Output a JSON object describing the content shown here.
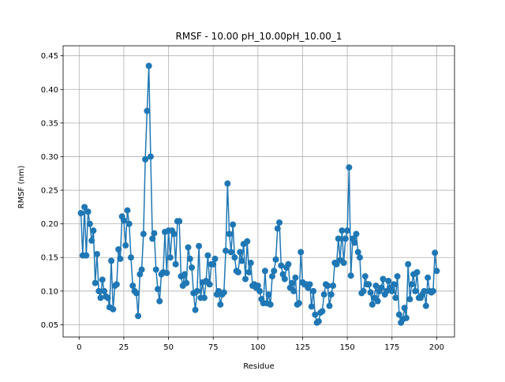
{
  "chart_data": {
    "type": "line",
    "title": "RMSF - 10.00 pH_10.00pH_10.00_1",
    "x_label": "Residue",
    "y_label": "RMSF (nm)",
    "grid": true,
    "xlim": [
      -8.95,
      209.95
    ],
    "xticks": [
      0,
      25,
      50,
      75,
      100,
      125,
      150,
      175,
      200
    ],
    "ylim": [
      0.0317,
      0.4649
    ],
    "yticks": [
      0.05,
      0.1,
      0.15,
      0.2,
      0.25,
      0.3,
      0.35,
      0.4,
      0.45
    ],
    "ytick_labels": [
      "0.05",
      "0.10",
      "0.15",
      "0.20",
      "0.25",
      "0.30",
      "0.35",
      "0.40",
      "0.45"
    ],
    "series": [
      {
        "color": "#1f77b4",
        "x": [
          1,
          2,
          3,
          4,
          5,
          6,
          7,
          8,
          9,
          10,
          11,
          12,
          13,
          14,
          15,
          16,
          17,
          18,
          19,
          20,
          21,
          22,
          23,
          24,
          25,
          26,
          27,
          28,
          29,
          30,
          31,
          32,
          33,
          34,
          35,
          36,
          37,
          38,
          39,
          40,
          41,
          42,
          43,
          44,
          45,
          46,
          47,
          48,
          49,
          50,
          51,
          52,
          53,
          54,
          55,
          56,
          57,
          58,
          59,
          60,
          61,
          62,
          63,
          64,
          65,
          66,
          67,
          68,
          69,
          70,
          71,
          72,
          73,
          74,
          75,
          76,
          77,
          78,
          79,
          80,
          81,
          82,
          83,
          84,
          85,
          86,
          87,
          88,
          89,
          90,
          91,
          92,
          93,
          94,
          95,
          96,
          97,
          98,
          99,
          100,
          101,
          102,
          103,
          104,
          105,
          106,
          107,
          108,
          109,
          110,
          111,
          112,
          113,
          114,
          115,
          116,
          117,
          118,
          119,
          120,
          121,
          122,
          123,
          124,
          125,
          126,
          127,
          128,
          129,
          130,
          131,
          132,
          133,
          134,
          135,
          136,
          137,
          138,
          139,
          140,
          141,
          142,
          143,
          144,
          145,
          146,
          147,
          148,
          149,
          150,
          151,
          152,
          153,
          154,
          155,
          156,
          157,
          158,
          159,
          160,
          161,
          162,
          163,
          164,
          165,
          166,
          167,
          168,
          169,
          170,
          171,
          172,
          173,
          174,
          175,
          176,
          177,
          178,
          179,
          180,
          181,
          182,
          183,
          184,
          185,
          186,
          187,
          188,
          189,
          190,
          191,
          192,
          193,
          194,
          195,
          196,
          197,
          198,
          199,
          200
        ],
        "values": [
          0.216,
          0.153,
          0.225,
          0.153,
          0.218,
          0.2,
          0.175,
          0.19,
          0.112,
          0.155,
          0.1,
          0.09,
          0.117,
          0.1,
          0.092,
          0.09,
          0.076,
          0.145,
          0.073,
          0.108,
          0.11,
          0.162,
          0.148,
          0.211,
          0.205,
          0.168,
          0.22,
          0.2,
          0.15,
          0.108,
          0.1,
          0.097,
          0.063,
          0.125,
          0.132,
          0.185,
          0.296,
          0.368,
          0.435,
          0.3,
          0.178,
          0.186,
          0.132,
          0.103,
          0.085,
          0.125,
          0.128,
          0.188,
          0.127,
          0.19,
          0.15,
          0.19,
          0.185,
          0.14,
          0.204,
          0.204,
          0.122,
          0.108,
          0.125,
          0.112,
          0.165,
          0.148,
          0.135,
          0.097,
          0.072,
          0.1,
          0.167,
          0.09,
          0.113,
          0.09,
          0.115,
          0.153,
          0.11,
          0.14,
          0.14,
          0.148,
          0.095,
          0.1,
          0.08,
          0.095,
          0.098,
          0.16,
          0.26,
          0.185,
          0.158,
          0.199,
          0.15,
          0.13,
          0.128,
          0.158,
          0.145,
          0.17,
          0.118,
          0.174,
          0.128,
          0.142,
          0.108,
          0.11,
          0.105,
          0.108,
          0.1,
          0.088,
          0.082,
          0.13,
          0.082,
          0.095,
          0.08,
          0.122,
          0.13,
          0.147,
          0.193,
          0.202,
          0.138,
          0.125,
          0.118,
          0.135,
          0.14,
          0.105,
          0.112,
          0.1,
          0.12,
          0.08,
          0.082,
          0.158,
          0.113,
          0.11,
          0.11,
          0.105,
          0.11,
          0.077,
          0.1,
          0.065,
          0.053,
          0.055,
          0.068,
          0.07,
          0.095,
          0.11,
          0.108,
          0.078,
          0.095,
          0.108,
          0.142,
          0.14,
          0.178,
          0.146,
          0.19,
          0.142,
          0.178,
          0.19,
          0.284,
          0.123,
          0.178,
          0.172,
          0.185,
          0.158,
          0.15,
          0.097,
          0.1,
          0.122,
          0.11,
          0.11,
          0.098,
          0.08,
          0.09,
          0.108,
          0.085,
          0.1,
          0.105,
          0.118,
          0.095,
          0.1,
          0.115,
          0.105,
          0.1,
          0.11,
          0.09,
          0.122,
          0.065,
          0.053,
          0.058,
          0.075,
          0.06,
          0.14,
          0.088,
          0.11,
          0.125,
          0.1,
          0.128,
          0.09,
          0.09,
          0.095,
          0.1,
          0.078,
          0.12,
          0.1,
          0.098,
          0.1,
          0.157,
          0.13
        ]
      }
    ]
  }
}
